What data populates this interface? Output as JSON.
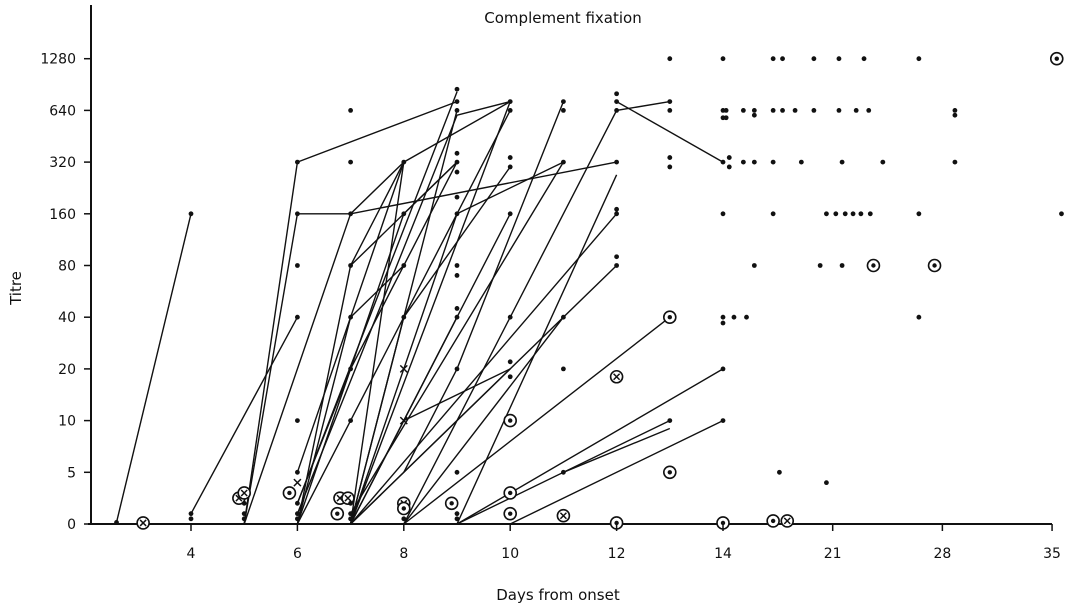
{
  "chart_data": {
    "type": "line",
    "title": "Complement fixation",
    "xlabel": "Days from onset",
    "ylabel": "Titre",
    "x_ticks": [
      "4",
      "6",
      "8",
      "10",
      "12",
      "14",
      "21",
      "28",
      "35"
    ],
    "y_ticks": [
      "0",
      "5",
      "10",
      "20",
      "40",
      "80",
      "160",
      "320",
      "640",
      "1280"
    ],
    "x_axis_note": "piecewise axis: equal spacing per day from day 2.5 to day 14, then compressed spacing per week from 14 to 35",
    "y_axis_note": "ordinal titre scale, equal spacing between listed dilutions",
    "grid": false,
    "legend": "none",
    "marker_key": {
      "dot": "single observation",
      "circled_dot": "circled observation",
      "circled_cross": "circled cross observation",
      "cross": "cross observation"
    },
    "series_lines": [
      [
        [
          2.6,
          0.15
        ],
        [
          4.0,
          160
        ]
      ],
      [
        [
          4.0,
          1
        ],
        [
          6.0,
          40
        ]
      ],
      [
        [
          5.0,
          0
        ],
        [
          6.0,
          160
        ],
        [
          7.0,
          160
        ],
        [
          8.0,
          320
        ]
      ],
      [
        [
          5.0,
          0
        ],
        [
          7.0,
          160
        ]
      ],
      [
        [
          5.0,
          0
        ],
        [
          6.0,
          320
        ],
        [
          9.0,
          720
        ]
      ],
      [
        [
          6.0,
          0
        ],
        [
          7.0,
          80
        ],
        [
          8.0,
          320
        ]
      ],
      [
        [
          6.0,
          2
        ],
        [
          9.0,
          820
        ]
      ],
      [
        [
          6.0,
          5
        ],
        [
          8.0,
          320
        ]
      ],
      [
        [
          6.0,
          1
        ],
        [
          9.0,
          600
        ],
        [
          10.0,
          720
        ]
      ],
      [
        [
          6.0,
          0
        ],
        [
          7.0,
          40
        ],
        [
          8.0,
          80
        ]
      ],
      [
        [
          6.0,
          0
        ],
        [
          8.0,
          160
        ],
        [
          9.0,
          320
        ]
      ],
      [
        [
          6.0,
          0
        ],
        [
          10.0,
          640
        ]
      ],
      [
        [
          6.0,
          2
        ],
        [
          7.0,
          20
        ],
        [
          9.0,
          320
        ]
      ],
      [
        [
          7.0,
          0
        ],
        [
          9.0,
          640
        ]
      ],
      [
        [
          7.0,
          0
        ],
        [
          8.0,
          320
        ],
        [
          10.0,
          720
        ]
      ],
      [
        [
          7.0,
          0
        ],
        [
          8.0,
          40
        ],
        [
          10.0,
          300
        ]
      ],
      [
        [
          7.0,
          0
        ],
        [
          9.0,
          160
        ],
        [
          11.0,
          320
        ]
      ],
      [
        [
          7.0,
          0
        ],
        [
          10.0,
          160
        ]
      ],
      [
        [
          7.0,
          1
        ],
        [
          11.0,
          320
        ]
      ],
      [
        [
          7.0,
          0
        ],
        [
          12.0,
          160
        ]
      ],
      [
        [
          7.0,
          0
        ],
        [
          12.0,
          80
        ]
      ],
      [
        [
          7.0,
          0
        ],
        [
          9.0,
          40
        ]
      ],
      [
        [
          7.0,
          0
        ],
        [
          10.0,
          20
        ]
      ],
      [
        [
          7.0,
          160
        ],
        [
          12.0,
          320
        ]
      ],
      [
        [
          8.0,
          0
        ],
        [
          12.0,
          640
        ],
        [
          13.0,
          720
        ]
      ],
      [
        [
          8.0,
          0
        ],
        [
          11.0,
          40
        ]
      ],
      [
        [
          8.0,
          10
        ],
        [
          10.0,
          20
        ]
      ],
      [
        [
          8.0,
          5
        ],
        [
          9.0,
          20
        ],
        [
          11.0,
          720
        ]
      ],
      [
        [
          9.0,
          0
        ],
        [
          12.0,
          270
        ]
      ],
      [
        [
          8.0,
          0
        ],
        [
          13.0,
          40
        ]
      ],
      [
        [
          9.0,
          0
        ],
        [
          14.0,
          20
        ]
      ],
      [
        [
          9.0,
          0
        ],
        [
          13.0,
          10
        ]
      ],
      [
        [
          10.0,
          0
        ],
        [
          14.0,
          10
        ]
      ],
      [
        [
          11.0,
          5
        ],
        [
          13.0,
          9
        ]
      ],
      [
        [
          12.0,
          720
        ],
        [
          14.0,
          320
        ]
      ],
      [
        [
          7.0,
          80
        ],
        [
          9.0,
          320
        ]
      ],
      [
        [
          7.0,
          0
        ],
        [
          10.0,
          720
        ]
      ]
    ],
    "points": [
      {
        "x": 2.6,
        "y": 0.15,
        "m": "dot"
      },
      {
        "x": 3.1,
        "y": 0.1,
        "m": "circled_cross"
      },
      {
        "x": 4.0,
        "y": 160,
        "m": "dot"
      },
      {
        "x": 4.0,
        "y": 1,
        "m": "dot"
      },
      {
        "x": 4.0,
        "y": 0.5,
        "m": "dot"
      },
      {
        "x": 4.9,
        "y": 2.5,
        "m": "circled_cross"
      },
      {
        "x": 5.0,
        "y": 3,
        "m": "circled_cross"
      },
      {
        "x": 5.0,
        "y": 2,
        "m": "dot"
      },
      {
        "x": 5.0,
        "y": 1,
        "m": "dot"
      },
      {
        "x": 5.0,
        "y": 0.5,
        "m": "dot"
      },
      {
        "x": 6.0,
        "y": 320,
        "m": "dot"
      },
      {
        "x": 6.0,
        "y": 160,
        "m": "dot"
      },
      {
        "x": 6.0,
        "y": 80,
        "m": "dot"
      },
      {
        "x": 6.0,
        "y": 40,
        "m": "dot"
      },
      {
        "x": 6.0,
        "y": 10,
        "m": "dot"
      },
      {
        "x": 6.0,
        "y": 5,
        "m": "dot"
      },
      {
        "x": 6.0,
        "y": 4,
        "m": "cross"
      },
      {
        "x": 5.85,
        "y": 3,
        "m": "circled_dot"
      },
      {
        "x": 6.0,
        "y": 2,
        "m": "dot"
      },
      {
        "x": 6.0,
        "y": 1,
        "m": "dot"
      },
      {
        "x": 6.0,
        "y": 0.5,
        "m": "dot"
      },
      {
        "x": 6.8,
        "y": 2.5,
        "m": "circled_cross"
      },
      {
        "x": 6.95,
        "y": 2.5,
        "m": "circled_cross"
      },
      {
        "x": 6.75,
        "y": 1,
        "m": "circled_dot"
      },
      {
        "x": 7.0,
        "y": 640,
        "m": "dot"
      },
      {
        "x": 7.0,
        "y": 320,
        "m": "dot"
      },
      {
        "x": 7.0,
        "y": 160,
        "m": "dot"
      },
      {
        "x": 7.0,
        "y": 80,
        "m": "dot"
      },
      {
        "x": 7.0,
        "y": 40,
        "m": "dot"
      },
      {
        "x": 7.0,
        "y": 20,
        "m": "dot"
      },
      {
        "x": 7.0,
        "y": 10,
        "m": "dot"
      },
      {
        "x": 7.0,
        "y": 2,
        "m": "dot"
      },
      {
        "x": 7.0,
        "y": 1,
        "m": "dot"
      },
      {
        "x": 7.0,
        "y": 0.5,
        "m": "dot"
      },
      {
        "x": 8.0,
        "y": 320,
        "m": "dot"
      },
      {
        "x": 8.0,
        "y": 160,
        "m": "dot"
      },
      {
        "x": 8.0,
        "y": 80,
        "m": "dot"
      },
      {
        "x": 8.0,
        "y": 40,
        "m": "dot"
      },
      {
        "x": 8.0,
        "y": 20,
        "m": "cross"
      },
      {
        "x": 8.0,
        "y": 10,
        "m": "cross"
      },
      {
        "x": 8.0,
        "y": 2,
        "m": "circled_cross"
      },
      {
        "x": 8.0,
        "y": 1.5,
        "m": "circled_dot"
      },
      {
        "x": 8.0,
        "y": 0.5,
        "m": "dot"
      },
      {
        "x": 9.0,
        "y": 850,
        "m": "dot"
      },
      {
        "x": 9.0,
        "y": 720,
        "m": "dot"
      },
      {
        "x": 9.0,
        "y": 640,
        "m": "dot"
      },
      {
        "x": 9.0,
        "y": 360,
        "m": "dot"
      },
      {
        "x": 9.0,
        "y": 320,
        "m": "dot"
      },
      {
        "x": 9.0,
        "y": 280,
        "m": "dot"
      },
      {
        "x": 9.0,
        "y": 200,
        "m": "dot"
      },
      {
        "x": 9.0,
        "y": 160,
        "m": "dot"
      },
      {
        "x": 9.0,
        "y": 80,
        "m": "dot"
      },
      {
        "x": 9.0,
        "y": 70,
        "m": "dot"
      },
      {
        "x": 9.0,
        "y": 45,
        "m": "dot"
      },
      {
        "x": 9.0,
        "y": 40,
        "m": "dot"
      },
      {
        "x": 9.0,
        "y": 20,
        "m": "dot"
      },
      {
        "x": 9.0,
        "y": 5,
        "m": "dot"
      },
      {
        "x": 8.9,
        "y": 2,
        "m": "circled_dot"
      },
      {
        "x": 9.0,
        "y": 1,
        "m": "dot"
      },
      {
        "x": 9.0,
        "y": 0.5,
        "m": "dot"
      },
      {
        "x": 10.0,
        "y": 720,
        "m": "dot"
      },
      {
        "x": 10.0,
        "y": 640,
        "m": "dot"
      },
      {
        "x": 10.0,
        "y": 340,
        "m": "dot"
      },
      {
        "x": 10.0,
        "y": 300,
        "m": "dot"
      },
      {
        "x": 10.0,
        "y": 160,
        "m": "dot"
      },
      {
        "x": 10.0,
        "y": 40,
        "m": "dot"
      },
      {
        "x": 10.0,
        "y": 22,
        "m": "dot"
      },
      {
        "x": 10.0,
        "y": 18,
        "m": "dot"
      },
      {
        "x": 10.0,
        "y": 10,
        "m": "circled_dot"
      },
      {
        "x": 10.0,
        "y": 3,
        "m": "circled_dot"
      },
      {
        "x": 10.0,
        "y": 1,
        "m": "circled_dot"
      },
      {
        "x": 11.0,
        "y": 720,
        "m": "dot"
      },
      {
        "x": 11.0,
        "y": 640,
        "m": "dot"
      },
      {
        "x": 11.0,
        "y": 320,
        "m": "dot"
      },
      {
        "x": 11.0,
        "y": 40,
        "m": "dot"
      },
      {
        "x": 11.0,
        "y": 20,
        "m": "dot"
      },
      {
        "x": 11.0,
        "y": 5,
        "m": "dot"
      },
      {
        "x": 11.0,
        "y": 0.8,
        "m": "circled_cross"
      },
      {
        "x": 12.0,
        "y": 800,
        "m": "dot"
      },
      {
        "x": 12.0,
        "y": 720,
        "m": "dot"
      },
      {
        "x": 12.0,
        "y": 640,
        "m": "dot"
      },
      {
        "x": 12.0,
        "y": 320,
        "m": "dot"
      },
      {
        "x": 12.0,
        "y": 170,
        "m": "dot"
      },
      {
        "x": 12.0,
        "y": 160,
        "m": "dot"
      },
      {
        "x": 12.0,
        "y": 90,
        "m": "dot"
      },
      {
        "x": 12.0,
        "y": 80,
        "m": "dot"
      },
      {
        "x": 12.0,
        "y": 18,
        "m": "circled_cross"
      },
      {
        "x": 12.0,
        "y": 0.1,
        "m": "circled_dot"
      },
      {
        "x": 13.0,
        "y": 1280,
        "m": "dot"
      },
      {
        "x": 13.0,
        "y": 720,
        "m": "dot"
      },
      {
        "x": 13.0,
        "y": 640,
        "m": "dot"
      },
      {
        "x": 13.0,
        "y": 340,
        "m": "dot"
      },
      {
        "x": 13.0,
        "y": 300,
        "m": "dot"
      },
      {
        "x": 13.0,
        "y": 40,
        "m": "circled_dot"
      },
      {
        "x": 13.0,
        "y": 10,
        "m": "dot"
      },
      {
        "x": 13.0,
        "y": 5,
        "m": "circled_dot"
      },
      {
        "x": 14.0,
        "y": 1280,
        "m": "dot"
      },
      {
        "x": 14.0,
        "y": 640,
        "m": "dot"
      },
      {
        "x": 14.0,
        "y": 580,
        "m": "dot"
      },
      {
        "x": 14.0,
        "y": 320,
        "m": "dot"
      },
      {
        "x": 14.0,
        "y": 160,
        "m": "dot"
      },
      {
        "x": 14.0,
        "y": 40,
        "m": "dot"
      },
      {
        "x": 14.0,
        "y": 37,
        "m": "dot"
      },
      {
        "x": 14.0,
        "y": 20,
        "m": "dot"
      },
      {
        "x": 14.0,
        "y": 10,
        "m": "dot"
      },
      {
        "x": 14.0,
        "y": 0.1,
        "m": "circled_dot"
      },
      {
        "x": 14.2,
        "y": 640,
        "m": "dot"
      },
      {
        "x": 14.2,
        "y": 580,
        "m": "dot"
      },
      {
        "x": 14.4,
        "y": 340,
        "m": "dot"
      },
      {
        "x": 14.4,
        "y": 300,
        "m": "dot"
      },
      {
        "x": 14.7,
        "y": 40,
        "m": "dot"
      },
      {
        "x": 15.3,
        "y": 640,
        "m": "dot"
      },
      {
        "x": 15.3,
        "y": 320,
        "m": "dot"
      },
      {
        "x": 15.5,
        "y": 40,
        "m": "dot"
      },
      {
        "x": 16.0,
        "y": 80,
        "m": "dot"
      },
      {
        "x": 16.0,
        "y": 640,
        "m": "dot"
      },
      {
        "x": 16.0,
        "y": 600,
        "m": "dot"
      },
      {
        "x": 16.0,
        "y": 320,
        "m": "dot"
      },
      {
        "x": 17.2,
        "y": 1280,
        "m": "dot"
      },
      {
        "x": 17.2,
        "y": 640,
        "m": "dot"
      },
      {
        "x": 17.2,
        "y": 320,
        "m": "dot"
      },
      {
        "x": 17.2,
        "y": 160,
        "m": "dot"
      },
      {
        "x": 17.2,
        "y": 0.3,
        "m": "circled_dot"
      },
      {
        "x": 17.6,
        "y": 5,
        "m": "dot"
      },
      {
        "x": 17.8,
        "y": 1280,
        "m": "dot"
      },
      {
        "x": 17.8,
        "y": 640,
        "m": "dot"
      },
      {
        "x": 18.1,
        "y": 0.3,
        "m": "circled_cross"
      },
      {
        "x": 18.6,
        "y": 640,
        "m": "dot"
      },
      {
        "x": 19.0,
        "y": 320,
        "m": "dot"
      },
      {
        "x": 19.8,
        "y": 1280,
        "m": "dot"
      },
      {
        "x": 19.8,
        "y": 640,
        "m": "dot"
      },
      {
        "x": 20.2,
        "y": 80,
        "m": "dot"
      },
      {
        "x": 20.6,
        "y": 4,
        "m": "dot"
      },
      {
        "x": 20.6,
        "y": 160,
        "m": "dot"
      },
      {
        "x": 21.2,
        "y": 160,
        "m": "dot"
      },
      {
        "x": 21.4,
        "y": 1280,
        "m": "dot"
      },
      {
        "x": 21.4,
        "y": 640,
        "m": "dot"
      },
      {
        "x": 21.6,
        "y": 320,
        "m": "dot"
      },
      {
        "x": 21.6,
        "y": 80,
        "m": "dot"
      },
      {
        "x": 21.8,
        "y": 160,
        "m": "dot"
      },
      {
        "x": 22.3,
        "y": 160,
        "m": "dot"
      },
      {
        "x": 22.5,
        "y": 640,
        "m": "dot"
      },
      {
        "x": 22.8,
        "y": 160,
        "m": "dot"
      },
      {
        "x": 23.0,
        "y": 1280,
        "m": "dot"
      },
      {
        "x": 23.3,
        "y": 640,
        "m": "dot"
      },
      {
        "x": 23.4,
        "y": 160,
        "m": "dot"
      },
      {
        "x": 23.6,
        "y": 80,
        "m": "circled_dot"
      },
      {
        "x": 24.2,
        "y": 320,
        "m": "dot"
      },
      {
        "x": 26.5,
        "y": 1280,
        "m": "dot"
      },
      {
        "x": 26.5,
        "y": 160,
        "m": "dot"
      },
      {
        "x": 26.5,
        "y": 40,
        "m": "dot"
      },
      {
        "x": 27.5,
        "y": 80,
        "m": "circled_dot"
      },
      {
        "x": 28.8,
        "y": 640,
        "m": "dot"
      },
      {
        "x": 28.8,
        "y": 600,
        "m": "dot"
      },
      {
        "x": 28.8,
        "y": 320,
        "m": "dot"
      },
      {
        "x": 35.3,
        "y": 1280,
        "m": "circled_dot"
      },
      {
        "x": 35.6,
        "y": 160,
        "m": "dot"
      }
    ]
  }
}
